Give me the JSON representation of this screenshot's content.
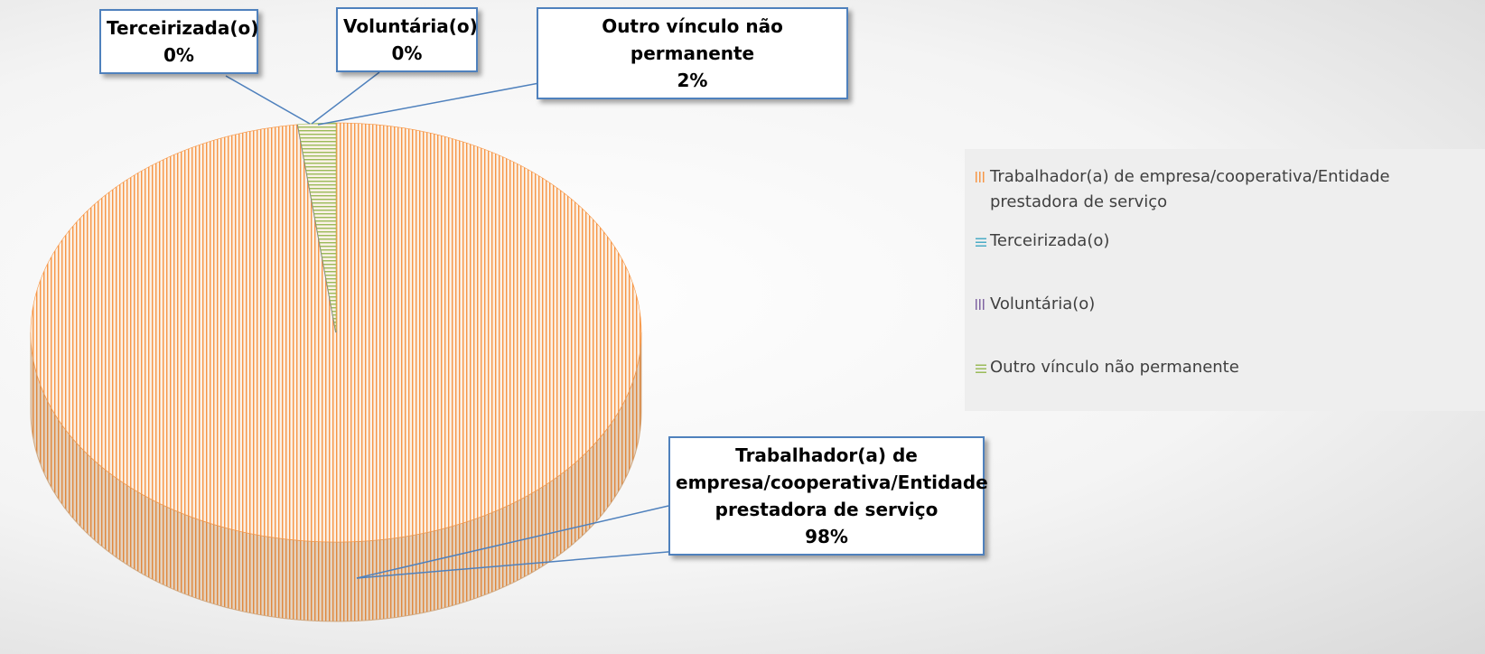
{
  "chart_data": {
    "type": "pie",
    "categories": [
      "Trabalhador(a) de empresa/cooperativa/Entidade prestadora de serviço",
      "Terceirizada(o)",
      "Voluntária(o)",
      "Outro vínculo não permanente"
    ],
    "values": [
      98,
      0,
      0,
      2
    ],
    "value_labels": [
      "98%",
      "0%",
      "0%",
      "2%"
    ],
    "colors": [
      "#f79646",
      "#4bacc6",
      "#8064a2",
      "#9bbb59"
    ],
    "legend": "right"
  }
}
